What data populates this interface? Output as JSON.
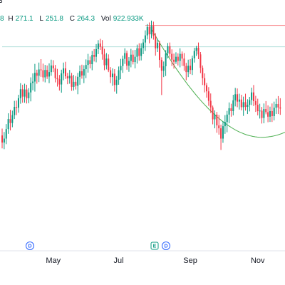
{
  "legend": {
    "top_fragment": "3",
    "open_value": "8",
    "high_label": "H",
    "high_value": "271.1",
    "low_label": "L",
    "low_value": "251.8",
    "close_label": "C",
    "close_value": "264.3",
    "volume_label": "Vol",
    "volume_value": "922.933K"
  },
  "colors": {
    "up": "#089981",
    "down": "#f23645",
    "curve": "#4caf50",
    "resistance": "#f77c80",
    "level": "#b2dfdb",
    "axis_text": "#131722",
    "badge": "#2962ff",
    "earnings_badge": "#089981"
  },
  "events": [
    {
      "kind": "dividend",
      "symbol": "D",
      "date": "Apr"
    },
    {
      "kind": "earnings",
      "symbol": "E",
      "date": "Jul"
    },
    {
      "kind": "dividend",
      "symbol": "D",
      "date": "Aug"
    }
  ],
  "chart_data": {
    "type": "candlestick",
    "x_ticks": [
      "May",
      "Jul",
      "Sep",
      "Nov"
    ],
    "series": [
      {
        "kind": "ohlc",
        "values": [
          [
            233.7,
            236.3,
            228.8,
            231.0
          ],
          [
            231.0,
            235.0,
            228.5,
            232.5
          ],
          [
            232.5,
            238.0,
            230.4,
            236.1
          ],
          [
            236.1,
            242.1,
            234.3,
            239.9
          ],
          [
            239.9,
            243.4,
            235.6,
            238.4
          ],
          [
            238.4,
            243.1,
            236.8,
            241.4
          ],
          [
            241.4,
            246.8,
            239.9,
            244.5
          ],
          [
            244.5,
            246.9,
            241.4,
            244.2
          ],
          [
            244.2,
            249.1,
            242.3,
            247.8
          ],
          [
            247.8,
            253.5,
            245.7,
            251.2
          ],
          [
            251.2,
            252.9,
            246.1,
            248.4
          ],
          [
            248.4,
            253.3,
            246.1,
            251.1
          ],
          [
            251.1,
            252.9,
            245.8,
            247.8
          ],
          [
            247.8,
            251.6,
            245.9,
            250.0
          ],
          [
            250.0,
            255.7,
            246.6,
            253.6
          ],
          [
            253.6,
            257.2,
            250.8,
            254.1
          ],
          [
            254.1,
            260.8,
            250.3,
            257.4
          ],
          [
            257.4,
            258.6,
            253.3,
            256.3
          ],
          [
            256.3,
            261.3,
            253.9,
            258.7
          ],
          [
            258.7,
            262.6,
            255.9,
            258.4
          ],
          [
            258.4,
            260.9,
            254.1,
            255.7
          ],
          [
            255.7,
            260.4,
            253.8,
            258.5
          ],
          [
            258.5,
            260.2,
            255.1,
            256.0
          ],
          [
            256.0,
            261.0,
            253.5,
            257.7
          ],
          [
            257.7,
            262.4,
            256.3,
            260.2
          ],
          [
            260.2,
            262.2,
            257.7,
            259.1
          ],
          [
            259.1,
            260.4,
            253.8,
            255.4
          ],
          [
            255.4,
            258.9,
            252.2,
            255.0
          ],
          [
            255.0,
            256.6,
            250.7,
            253.0
          ],
          [
            253.0,
            258.6,
            249.9,
            257.2
          ],
          [
            257.2,
            261.3,
            254.6,
            259.1
          ],
          [
            259.1,
            261.6,
            255.1,
            256.1
          ],
          [
            256.1,
            257.4,
            253.1,
            255.3
          ],
          [
            255.3,
            258.5,
            253.3,
            256.3
          ],
          [
            256.3,
            257.4,
            250.6,
            252.1
          ],
          [
            252.1,
            256.6,
            250.7,
            254.0
          ],
          [
            254.0,
            256.2,
            251.1,
            252.5
          ],
          [
            252.5,
            257.4,
            249.3,
            255.9
          ],
          [
            255.9,
            260.2,
            252.9,
            258.0
          ],
          [
            258.0,
            260.5,
            255.2,
            256.4
          ],
          [
            256.4,
            260.3,
            253.5,
            258.8
          ],
          [
            258.8,
            262.5,
            255.4,
            260.4
          ],
          [
            260.4,
            264.6,
            257.5,
            262.2
          ],
          [
            262.2,
            263.6,
            259.1,
            260.7
          ],
          [
            260.7,
            265.7,
            258.4,
            264.2
          ],
          [
            264.2,
            266.4,
            261.7,
            263.5
          ],
          [
            263.5,
            268.3,
            261.4,
            266.4
          ],
          [
            266.4,
            269.8,
            264.5,
            268.5
          ],
          [
            268.5,
            270.3,
            266.1,
            267.3
          ],
          [
            267.3,
            269.8,
            262.4,
            264.4
          ],
          [
            264.4,
            266.5,
            258.4,
            260.3
          ],
          [
            260.3,
            264.9,
            258.7,
            262.8
          ],
          [
            262.8,
            264.4,
            257.7,
            258.4
          ],
          [
            258.4,
            259.6,
            253.5,
            255.8
          ],
          [
            255.8,
            259.1,
            252.5,
            257.1
          ],
          [
            257.1,
            258.8,
            250.3,
            252.8
          ],
          [
            252.8,
            256.2,
            249.5,
            254.8
          ],
          [
            254.8,
            259.8,
            252.9,
            258.4
          ],
          [
            258.4,
            262.7,
            255.0,
            260.0
          ],
          [
            260.0,
            263.9,
            257.4,
            262.7
          ],
          [
            262.7,
            266.7,
            260.8,
            264.9
          ],
          [
            264.9,
            265.8,
            258.6,
            260.1
          ],
          [
            260.1,
            263.4,
            257.8,
            261.9
          ],
          [
            261.9,
            266.5,
            259.5,
            264.3
          ],
          [
            264.3,
            266.0,
            260.6,
            261.5
          ],
          [
            261.5,
            266.1,
            259.1,
            263.5
          ],
          [
            263.5,
            268.1,
            260.9,
            266.7
          ],
          [
            266.7,
            268.6,
            262.0,
            263.8
          ],
          [
            263.8,
            268.6,
            262.1,
            266.8
          ],
          [
            266.8,
            270.2,
            264.5,
            268.9
          ],
          [
            268.9,
            273.5,
            265.7,
            271.6
          ],
          [
            271.6,
            275.9,
            270.1,
            274.8
          ],
          [
            274.8,
            276.5,
            268.6,
            272.0
          ],
          [
            272.0,
            277.2,
            270.5,
            275.1
          ],
          [
            275.1,
            276.8,
            270.0,
            271.4
          ],
          [
            271.4,
            272.5,
            263.9,
            266.7
          ],
          [
            266.7,
            270.3,
            265.3,
            268.8
          ],
          [
            268.8,
            269.5,
            259.4,
            262.3
          ],
          [
            262.3,
            263.3,
            249.0,
            258.2
          ],
          [
            258.2,
            261.7,
            255.8,
            259.9
          ],
          [
            259.9,
            266.0,
            256.2,
            264.8
          ],
          [
            264.8,
            268.7,
            262.9,
            267.5
          ],
          [
            267.5,
            268.9,
            263.3,
            264.6
          ],
          [
            264.6,
            266.3,
            260.0,
            262.4
          ],
          [
            262.4,
            264.7,
            259.0,
            261.6
          ],
          [
            261.6,
            265.2,
            260.8,
            263.5
          ],
          [
            263.5,
            264.8,
            260.2,
            261.9
          ],
          [
            261.9,
            266.7,
            259.5,
            264.6
          ],
          [
            264.6,
            265.5,
            260.0,
            262.8
          ],
          [
            262.8,
            264.9,
            258.2,
            260.0
          ],
          [
            260.0,
            261.2,
            254.6,
            257.7
          ],
          [
            257.7,
            262.4,
            255.8,
            260.1
          ],
          [
            260.1,
            262.6,
            256.9,
            258.5
          ],
          [
            258.5,
            263.9,
            256.6,
            262.9
          ],
          [
            262.9,
            266.9,
            261.3,
            265.7
          ],
          [
            265.7,
            267.6,
            263.8,
            266.9
          ],
          [
            266.9,
            268.9,
            262.6,
            264.4
          ],
          [
            264.4,
            265.3,
            257.3,
            259.3
          ],
          [
            259.3,
            260.2,
            252.8,
            255.4
          ],
          [
            255.4,
            257.2,
            250.0,
            252.7
          ],
          [
            252.7,
            253.6,
            248.0,
            250.4
          ],
          [
            250.4,
            252.0,
            244.9,
            246.8
          ],
          [
            246.8,
            249.6,
            242.2,
            244.3
          ],
          [
            244.3,
            245.0,
            237.9,
            239.8
          ],
          [
            239.8,
            243.2,
            236.4,
            241.6
          ],
          [
            241.6,
            242.6,
            234.7,
            237.5
          ],
          [
            237.5,
            241.5,
            234.0,
            236.4
          ],
          [
            236.4,
            237.8,
            228.2,
            232.5
          ],
          [
            232.5,
            239.1,
            230.9,
            237.2
          ],
          [
            237.2,
            241.4,
            234.3,
            238.8
          ],
          [
            238.8,
            243.0,
            234.9,
            241.6
          ],
          [
            241.6,
            246.2,
            238.3,
            244.0
          ],
          [
            244.0,
            245.7,
            240.8,
            242.9
          ],
          [
            242.9,
            249.1,
            241.3,
            247.0
          ],
          [
            247.0,
            251.7,
            244.7,
            249.3
          ],
          [
            249.3,
            251.5,
            244.4,
            246.5
          ],
          [
            246.5,
            249.5,
            243.5,
            247.3
          ],
          [
            247.3,
            249.1,
            243.2,
            244.4
          ],
          [
            244.4,
            248.4,
            241.1,
            246.3
          ],
          [
            246.3,
            249.5,
            243.1,
            244.5
          ],
          [
            244.5,
            247.4,
            241.8,
            245.3
          ],
          [
            245.3,
            248.3,
            242.8,
            247.1
          ],
          [
            247.1,
            251.8,
            245.2,
            250.0
          ],
          [
            250.0,
            252.8,
            244.8,
            246.7
          ],
          [
            246.7,
            248.7,
            242.6,
            245.3
          ],
          [
            245.3,
            247.6,
            241.3,
            242.9
          ],
          [
            242.9,
            245.7,
            240.1,
            243.1
          ],
          [
            243.1,
            244.5,
            238.2,
            240.3
          ],
          [
            240.3,
            245.8,
            238.3,
            243.7
          ],
          [
            243.7,
            246.7,
            241.7,
            242.5
          ],
          [
            242.5,
            245.1,
            238.7,
            240.8
          ],
          [
            240.8,
            244.6,
            238.8,
            242.9
          ],
          [
            242.9,
            245.8,
            238.8,
            241.0
          ],
          [
            241.0,
            246.5,
            239.4,
            244.2
          ],
          [
            244.2,
            247.6,
            241.8,
            245.6
          ],
          [
            245.6,
            248.6,
            241.8,
            244.3
          ],
          [
            244.3,
            247.8,
            241.5,
            243.9
          ]
        ],
        "up_color": "#089981",
        "down_color": "#f23645"
      },
      {
        "kind": "horizontal_line",
        "value": 275.4,
        "from_index": 70,
        "color": "#f77c80"
      },
      {
        "kind": "horizontal_line",
        "value": 267.3,
        "from_index": 0,
        "color": "#b2dfdb"
      },
      {
        "kind": "arc",
        "from_index": 73,
        "to_index": 140,
        "start": 274.0,
        "bottom": 233.0,
        "bottom_index": 127,
        "end": 235.5,
        "color": "#4caf50"
      }
    ],
    "ylim": [
      190,
      285
    ]
  }
}
